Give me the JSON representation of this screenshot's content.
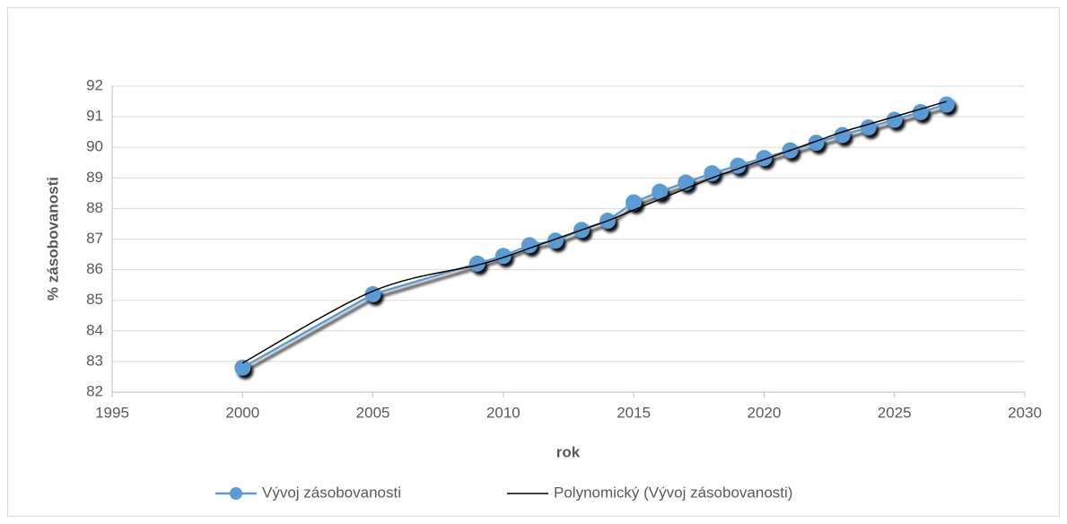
{
  "chart_data": {
    "type": "line",
    "x_label": "rok",
    "y_label": "% zásobovanosti",
    "x": [
      2000,
      2005,
      2009,
      2010,
      2011,
      2012,
      2013,
      2014,
      2015,
      2016,
      2017,
      2018,
      2019,
      2020,
      2021,
      2022,
      2023,
      2024,
      2025,
      2026,
      2027
    ],
    "series": [
      {
        "name": "Vývoj zásobovanosti",
        "color": "#5b9bd5",
        "values": [
          82.8,
          85.2,
          86.2,
          86.45,
          86.8,
          86.95,
          87.3,
          87.6,
          88.2,
          88.55,
          88.85,
          89.15,
          89.4,
          89.65,
          89.9,
          90.15,
          90.4,
          90.65,
          90.9,
          91.15,
          91.4
        ]
      },
      {
        "name": "Polynomický (Vývoj zásobovanosti)",
        "color": "#000000",
        "values": [
          82.95,
          85.3,
          86.15,
          86.4,
          86.7,
          87.0,
          87.3,
          87.6,
          87.95,
          88.3,
          88.65,
          89.0,
          89.3,
          89.6,
          89.9,
          90.2,
          90.5,
          90.75,
          91.0,
          91.25,
          91.5
        ]
      }
    ],
    "xlim": [
      1995,
      2030
    ],
    "xticks": [
      1995,
      2000,
      2005,
      2010,
      2015,
      2020,
      2025,
      2030
    ],
    "ylim": [
      82,
      92
    ],
    "yticks": [
      82,
      83,
      84,
      85,
      86,
      87,
      88,
      89,
      90,
      91,
      92
    ],
    "grid": true,
    "legend": "bottom"
  }
}
